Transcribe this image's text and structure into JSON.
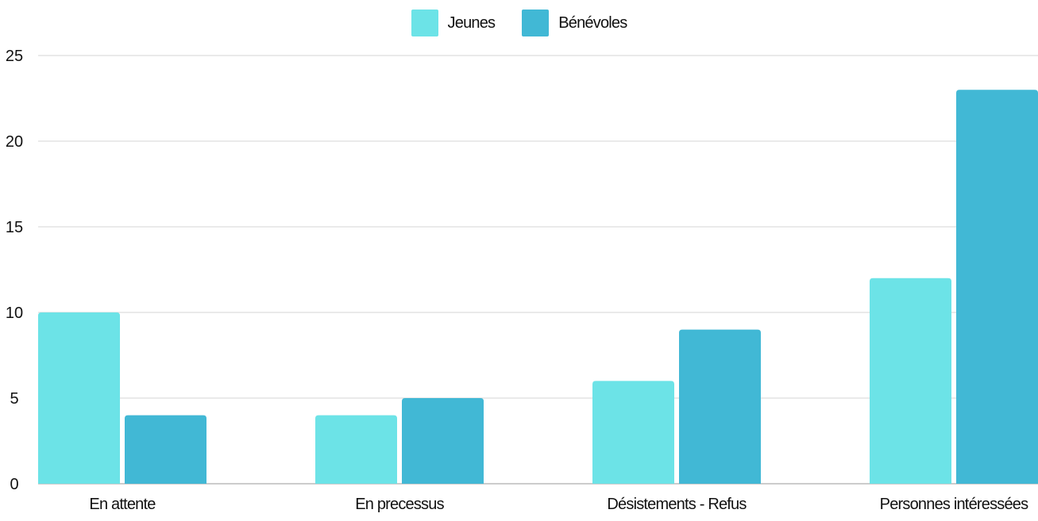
{
  "chart_data": {
    "type": "bar",
    "categories": [
      "En attente",
      "En precessus",
      "Désistements - Refus",
      "Personnes intéressées"
    ],
    "series": [
      {
        "name": "Jeunes",
        "values": [
          10,
          4,
          6,
          12
        ],
        "color": "#6ce3e7"
      },
      {
        "name": "Bénévoles",
        "values": [
          4,
          5,
          9,
          23
        ],
        "color": "#41b8d5"
      }
    ],
    "ylim": [
      0,
      25
    ],
    "yticks": [
      0,
      5,
      10,
      15,
      20,
      25
    ],
    "grid": true,
    "legend_position": "top-center",
    "title": "",
    "xlabel": "",
    "ylabel": ""
  }
}
